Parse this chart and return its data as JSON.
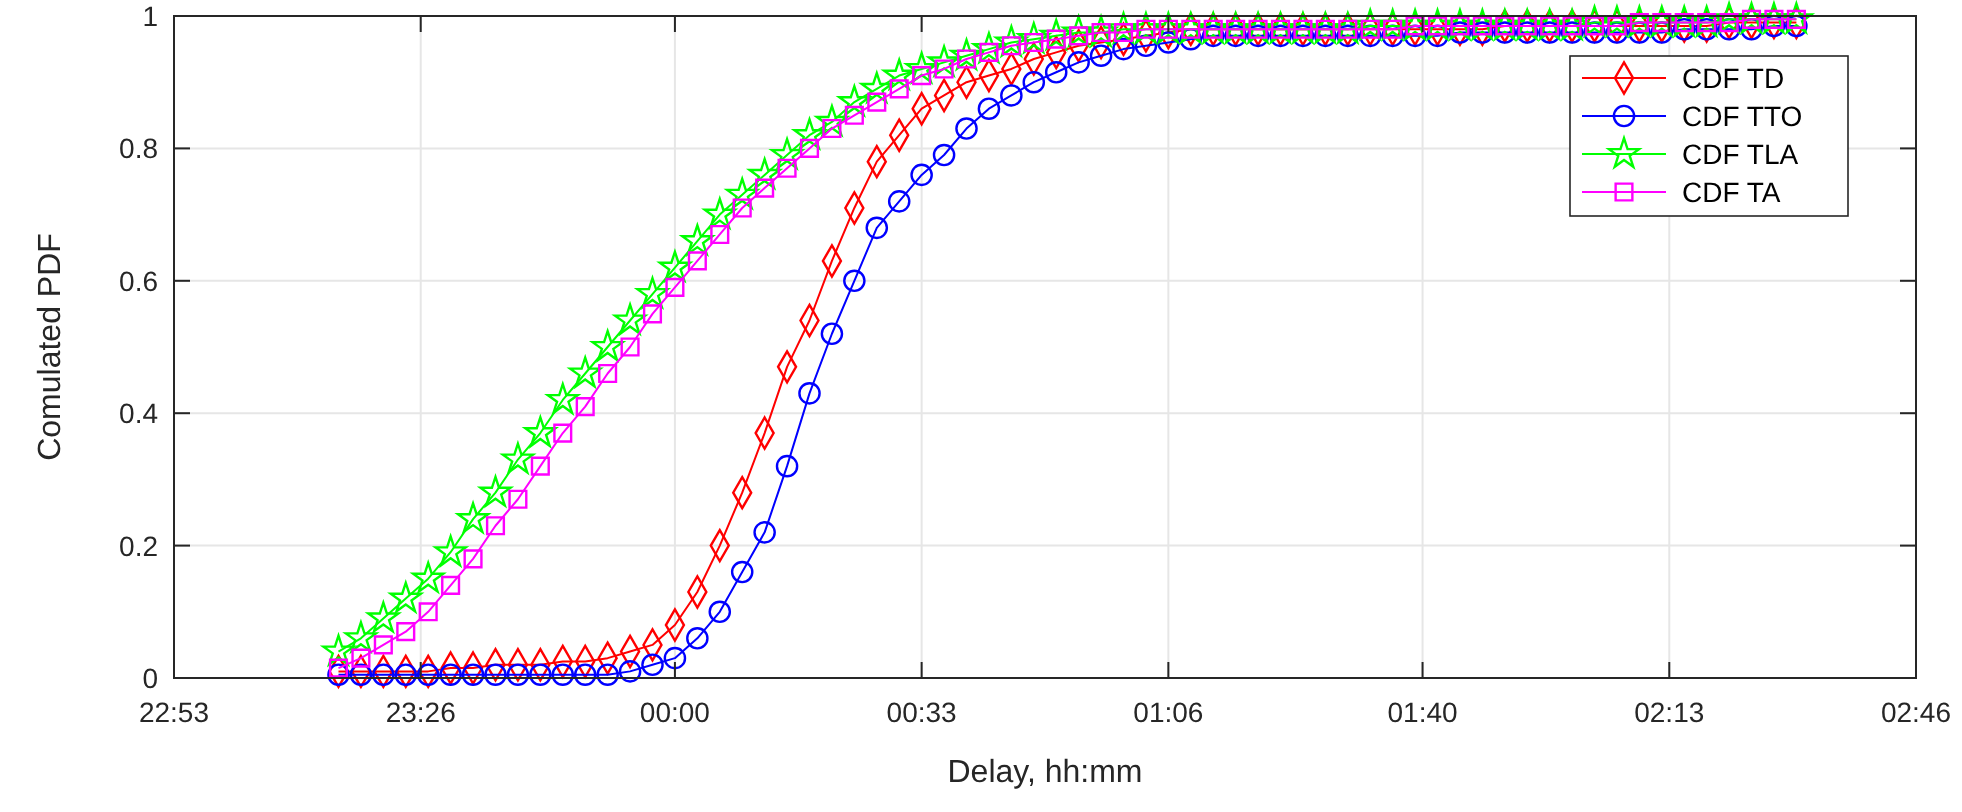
{
  "chart_data": {
    "type": "line",
    "xlabel": "Delay, hh:mm",
    "ylabel": "Comulated PDF",
    "x": [
      "2000-01-01T23:15",
      "2000-01-01T23:18",
      "2000-01-01T23:21",
      "2000-01-01T23:24",
      "2000-01-01T23:27",
      "2000-01-01T23:30",
      "2000-01-01T23:33",
      "2000-01-01T23:36",
      "2000-01-01T23:39",
      "2000-01-01T23:42",
      "2000-01-01T23:45",
      "2000-01-01T23:48",
      "2000-01-01T23:51",
      "2000-01-01T23:54",
      "2000-01-01T23:57",
      "2000-01-02T00:00",
      "2000-01-02T00:03",
      "2000-01-02T00:06",
      "2000-01-02T00:09",
      "2000-01-02T00:12",
      "2000-01-02T00:15",
      "2000-01-02T00:18",
      "2000-01-02T00:21",
      "2000-01-02T00:24",
      "2000-01-02T00:27",
      "2000-01-02T00:30",
      "2000-01-02T00:33",
      "2000-01-02T00:36",
      "2000-01-02T00:39",
      "2000-01-02T00:42",
      "2000-01-02T00:45",
      "2000-01-02T00:48",
      "2000-01-02T00:51",
      "2000-01-02T00:54",
      "2000-01-02T00:57",
      "2000-01-02T01:00",
      "2000-01-02T01:03",
      "2000-01-02T01:06",
      "2000-01-02T01:09",
      "2000-01-02T01:12",
      "2000-01-02T01:15",
      "2000-01-02T01:18",
      "2000-01-02T01:21",
      "2000-01-02T01:24",
      "2000-01-02T01:27",
      "2000-01-02T01:30",
      "2000-01-02T01:33",
      "2000-01-02T01:36",
      "2000-01-02T01:39",
      "2000-01-02T01:42",
      "2000-01-02T01:45",
      "2000-01-02T01:48",
      "2000-01-02T01:51",
      "2000-01-02T01:54",
      "2000-01-02T01:57",
      "2000-01-02T02:00",
      "2000-01-02T02:03",
      "2000-01-02T02:06",
      "2000-01-02T02:09",
      "2000-01-02T02:12",
      "2000-01-02T02:15",
      "2000-01-02T02:18",
      "2000-01-02T02:21",
      "2000-01-02T02:24",
      "2000-01-02T02:27",
      "2000-01-02T02:30"
    ],
    "series": [
      {
        "name": "CDF TD",
        "color": "#ff0000",
        "marker": "diamond",
        "values": [
          0.01,
          0.01,
          0.01,
          0.01,
          0.01,
          0.015,
          0.015,
          0.02,
          0.02,
          0.02,
          0.025,
          0.025,
          0.03,
          0.04,
          0.05,
          0.08,
          0.13,
          0.2,
          0.28,
          0.37,
          0.47,
          0.54,
          0.63,
          0.71,
          0.78,
          0.82,
          0.86,
          0.88,
          0.9,
          0.91,
          0.92,
          0.935,
          0.945,
          0.955,
          0.96,
          0.965,
          0.97,
          0.975,
          0.98,
          0.98,
          0.98,
          0.98,
          0.98,
          0.98,
          0.98,
          0.98,
          0.98,
          0.98,
          0.98,
          0.98,
          0.98,
          0.98,
          0.985,
          0.985,
          0.985,
          0.985,
          0.985,
          0.985,
          0.985,
          0.985,
          0.985,
          0.985,
          0.99,
          0.99,
          0.99,
          0.99
        ]
      },
      {
        "name": "CDF TTO",
        "color": "#0000ff",
        "marker": "circle",
        "values": [
          0.005,
          0.005,
          0.005,
          0.005,
          0.005,
          0.005,
          0.005,
          0.005,
          0.005,
          0.005,
          0.005,
          0.005,
          0.005,
          0.01,
          0.02,
          0.03,
          0.06,
          0.1,
          0.16,
          0.22,
          0.32,
          0.43,
          0.52,
          0.6,
          0.68,
          0.72,
          0.76,
          0.79,
          0.83,
          0.86,
          0.88,
          0.9,
          0.915,
          0.93,
          0.94,
          0.95,
          0.955,
          0.96,
          0.965,
          0.97,
          0.97,
          0.97,
          0.97,
          0.97,
          0.97,
          0.97,
          0.97,
          0.97,
          0.97,
          0.97,
          0.975,
          0.975,
          0.975,
          0.975,
          0.975,
          0.975,
          0.975,
          0.975,
          0.975,
          0.975,
          0.98,
          0.98,
          0.98,
          0.98,
          0.985,
          0.985
        ]
      },
      {
        "name": "CDF TLA",
        "color": "#00ff00",
        "marker": "star",
        "values": [
          0.04,
          0.06,
          0.09,
          0.12,
          0.15,
          0.19,
          0.24,
          0.28,
          0.33,
          0.37,
          0.42,
          0.46,
          0.5,
          0.54,
          0.58,
          0.62,
          0.66,
          0.7,
          0.73,
          0.76,
          0.79,
          0.82,
          0.84,
          0.87,
          0.89,
          0.91,
          0.92,
          0.93,
          0.94,
          0.95,
          0.96,
          0.965,
          0.97,
          0.975,
          0.975,
          0.98,
          0.98,
          0.98,
          0.98,
          0.98,
          0.98,
          0.98,
          0.98,
          0.98,
          0.98,
          0.98,
          0.985,
          0.985,
          0.985,
          0.985,
          0.985,
          0.985,
          0.985,
          0.985,
          0.985,
          0.985,
          0.99,
          0.99,
          0.99,
          0.99,
          0.99,
          0.99,
          0.995,
          0.995,
          0.995,
          0.995
        ]
      },
      {
        "name": "CDF TA",
        "color": "#ff00ff",
        "marker": "square",
        "values": [
          0.015,
          0.03,
          0.05,
          0.07,
          0.1,
          0.14,
          0.18,
          0.23,
          0.27,
          0.32,
          0.37,
          0.41,
          0.46,
          0.5,
          0.55,
          0.59,
          0.63,
          0.67,
          0.71,
          0.74,
          0.77,
          0.8,
          0.83,
          0.85,
          0.87,
          0.89,
          0.91,
          0.92,
          0.935,
          0.945,
          0.955,
          0.96,
          0.965,
          0.97,
          0.975,
          0.975,
          0.98,
          0.98,
          0.98,
          0.98,
          0.98,
          0.98,
          0.98,
          0.98,
          0.98,
          0.98,
          0.98,
          0.98,
          0.985,
          0.985,
          0.985,
          0.985,
          0.985,
          0.985,
          0.985,
          0.985,
          0.985,
          0.985,
          0.99,
          0.99,
          0.99,
          0.99,
          0.99,
          0.995,
          0.995,
          0.995
        ]
      }
    ],
    "xlim": [
      "2000-01-01T22:53",
      "2000-01-02T02:46"
    ],
    "xticks": [
      {
        "value": "2000-01-01T22:53",
        "label": "22:53"
      },
      {
        "value": "2000-01-01T23:26",
        "label": "23:26"
      },
      {
        "value": "2000-01-02T00:00",
        "label": "00:00"
      },
      {
        "value": "2000-01-02T00:33",
        "label": "00:33"
      },
      {
        "value": "2000-01-02T01:06",
        "label": "01:06"
      },
      {
        "value": "2000-01-02T01:40",
        "label": "01:40"
      },
      {
        "value": "2000-01-02T02:13",
        "label": "02:13"
      },
      {
        "value": "2000-01-02T02:46",
        "label": "02:46"
      }
    ],
    "ylim": [
      0,
      1
    ],
    "yticks": [
      0,
      0.2,
      0.4,
      0.6,
      0.8,
      1
    ],
    "grid": true,
    "legend": "top right",
    "line_style": "solid"
  }
}
